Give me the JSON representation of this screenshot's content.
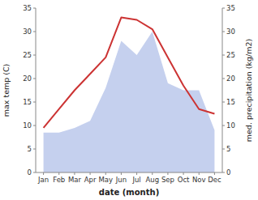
{
  "chart_data": {
    "type": "line",
    "xlabel": "date (month)",
    "ylabel": "max temp (C)",
    "y2label": "med. precipitation (kg/m2)",
    "categories": [
      "Jan",
      "Feb",
      "Mar",
      "Apr",
      "May",
      "Jun",
      "Jul",
      "Aug",
      "Sep",
      "Oct",
      "Nov",
      "Dec"
    ],
    "series": [
      {
        "type": "area",
        "axis": "y2",
        "color": "#c5d0ee",
        "values": [
          8.5,
          8.5,
          9.5,
          11.0,
          18.0,
          28.0,
          25.0,
          30.0,
          19.0,
          17.5,
          17.5,
          9.0
        ]
      },
      {
        "type": "line",
        "color": "#cc3333",
        "values": [
          9.5,
          13.5,
          17.5,
          21.0,
          24.5,
          33.0,
          32.5,
          30.5,
          24.5,
          18.5,
          13.5,
          12.5
        ]
      }
    ],
    "ylim": [
      0,
      35
    ],
    "yticks": [
      0,
      5,
      10,
      15,
      20,
      25,
      30,
      35
    ],
    "y2lim": [
      0,
      35
    ],
    "y2ticks": [
      0,
      5,
      10,
      15,
      20,
      25,
      30,
      35
    ],
    "grid": false
  }
}
